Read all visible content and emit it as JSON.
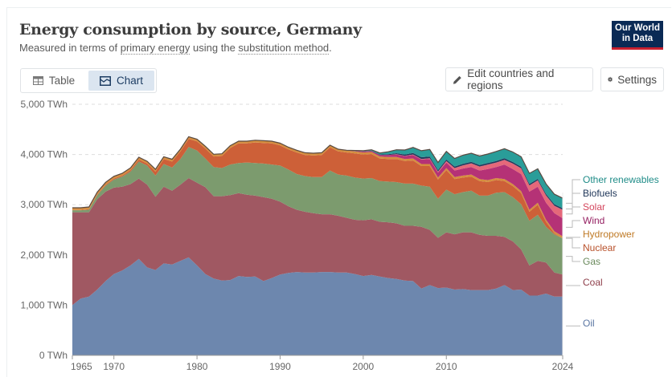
{
  "header": {
    "title": "Energy consumption by source, Germany",
    "subtitle_prefix": "Measured in terms of ",
    "subtitle_link1": "primary energy",
    "subtitle_mid": " using the ",
    "subtitle_link2": "substitution method",
    "subtitle_suffix": ".",
    "logo_line1": "Our World",
    "logo_line2": "in Data"
  },
  "controls": {
    "tab_table": "Table",
    "tab_chart": "Chart",
    "active_tab": "Chart",
    "edit_label": "Edit countries and regions",
    "settings_label": "Settings"
  },
  "colors": {
    "Oil": "#6d87ae",
    "Coal": "#a05862",
    "Gas": "#7c9b6e",
    "Nuclear": "#cd6038",
    "Hydropower": "#d58e3e",
    "Wind": "#b53276",
    "Solar": "#e5687a",
    "Biofuels": "#23395d",
    "Other renewables": "#2a9d99"
  },
  "label_colors": {
    "Oil": "#5b76a3",
    "Coal": "#8e3e4a",
    "Gas": "#6a8a5c",
    "Nuclear": "#b8502a",
    "Hydropower": "#bf7a26",
    "Wind": "#962263",
    "Solar": "#d4465d",
    "Biofuels": "#1d3457",
    "Other renewables": "#1f8c88"
  },
  "chart_data": {
    "type": "area",
    "stacked": true,
    "title": "Energy consumption by source, Germany",
    "subtitle": "Measured in terms of primary energy using the substitution method.",
    "xlabel": "",
    "ylabel": "",
    "ylim": [
      0,
      5000
    ],
    "yticks": [
      0,
      1000,
      2000,
      3000,
      4000,
      5000
    ],
    "ytick_labels": [
      "0 TWh",
      "1,000 TWh",
      "2,000 TWh",
      "3,000 TWh",
      "4,000 TWh",
      "5,000 TWh"
    ],
    "xlim": [
      1965,
      2024
    ],
    "xtick_labels": [
      "1965",
      "1970",
      "1980",
      "1990",
      "2000",
      "2010",
      "2024"
    ],
    "grid": "horizontal-dashed",
    "legend": "right-inline",
    "x": [
      1965,
      1966,
      1967,
      1968,
      1969,
      1970,
      1971,
      1972,
      1973,
      1974,
      1975,
      1976,
      1977,
      1978,
      1979,
      1980,
      1981,
      1982,
      1983,
      1984,
      1985,
      1986,
      1987,
      1988,
      1989,
      1990,
      1991,
      1992,
      1993,
      1994,
      1995,
      1996,
      1997,
      1998,
      1999,
      2000,
      2001,
      2002,
      2003,
      2004,
      2005,
      2006,
      2007,
      2008,
      2009,
      2010,
      2011,
      2012,
      2013,
      2014,
      2015,
      2016,
      2017,
      2018,
      2019,
      2020,
      2021,
      2022,
      2023,
      2024
    ],
    "series": [
      {
        "name": "Oil",
        "values": [
          1000,
          1130,
          1170,
          1310,
          1480,
          1620,
          1690,
          1790,
          1920,
          1750,
          1700,
          1830,
          1810,
          1880,
          1950,
          1790,
          1620,
          1530,
          1490,
          1500,
          1580,
          1560,
          1570,
          1480,
          1540,
          1610,
          1640,
          1660,
          1650,
          1650,
          1660,
          1660,
          1650,
          1650,
          1620,
          1580,
          1600,
          1570,
          1540,
          1520,
          1490,
          1480,
          1330,
          1400,
          1340,
          1350,
          1310,
          1320,
          1300,
          1300,
          1300,
          1330,
          1400,
          1300,
          1310,
          1190,
          1190,
          1230,
          1170,
          1170
        ]
      },
      {
        "name": "Coal",
        "values": [
          1850,
          1720,
          1680,
          1800,
          1780,
          1720,
          1670,
          1620,
          1600,
          1650,
          1460,
          1530,
          1470,
          1520,
          1580,
          1650,
          1730,
          1640,
          1680,
          1690,
          1650,
          1640,
          1610,
          1670,
          1580,
          1450,
          1330,
          1240,
          1210,
          1180,
          1150,
          1150,
          1130,
          1090,
          1080,
          1110,
          1110,
          1090,
          1110,
          1110,
          1090,
          1100,
          1230,
          1100,
          1000,
          1100,
          1100,
          1130,
          1150,
          1100,
          1080,
          1050,
          960,
          970,
          800,
          600,
          690,
          620,
          480,
          440
        ]
      },
      {
        "name": "Gas",
        "values": [
          40,
          40,
          50,
          80,
          120,
          160,
          200,
          250,
          340,
          380,
          420,
          450,
          460,
          510,
          620,
          640,
          570,
          580,
          560,
          610,
          600,
          640,
          650,
          670,
          680,
          720,
          730,
          710,
          710,
          720,
          740,
          870,
          820,
          840,
          840,
          830,
          820,
          810,
          810,
          820,
          840,
          840,
          820,
          860,
          780,
          850,
          800,
          800,
          830,
          780,
          800,
          860,
          890,
          880,
          900,
          890,
          920,
          710,
          760,
          720
        ]
      },
      {
        "name": "Nuclear",
        "values": [
          5,
          5,
          10,
          15,
          20,
          20,
          20,
          30,
          40,
          40,
          80,
          100,
          120,
          150,
          160,
          180,
          200,
          210,
          240,
          330,
          390,
          380,
          410,
          410,
          420,
          400,
          400,
          430,
          420,
          430,
          440,
          460,
          460,
          460,
          480,
          480,
          480,
          450,
          450,
          460,
          450,
          460,
          390,
          410,
          380,
          390,
          300,
          290,
          280,
          290,
          270,
          250,
          220,
          220,
          220,
          180,
          200,
          100,
          20,
          0
        ]
      },
      {
        "name": "Hydropower",
        "values": [
          40,
          40,
          40,
          40,
          40,
          40,
          40,
          40,
          40,
          40,
          40,
          40,
          40,
          40,
          40,
          40,
          40,
          40,
          40,
          40,
          40,
          40,
          40,
          40,
          40,
          40,
          40,
          40,
          40,
          40,
          40,
          40,
          40,
          40,
          40,
          40,
          40,
          40,
          40,
          40,
          40,
          40,
          40,
          40,
          40,
          40,
          40,
          40,
          40,
          40,
          40,
          40,
          40,
          40,
          40,
          40,
          40,
          40,
          40,
          40
        ]
      },
      {
        "name": "Wind",
        "values": [
          0,
          0,
          0,
          0,
          0,
          0,
          0,
          0,
          0,
          0,
          0,
          0,
          0,
          0,
          0,
          0,
          0,
          0,
          0,
          0,
          0,
          0,
          0,
          0,
          0,
          0,
          0,
          0,
          0,
          0,
          0,
          0,
          0,
          0,
          10,
          20,
          20,
          30,
          40,
          50,
          60,
          70,
          90,
          100,
          100,
          110,
          130,
          140,
          150,
          170,
          220,
          220,
          290,
          300,
          340,
          360,
          320,
          340,
          360,
          360
        ]
      },
      {
        "name": "Solar",
        "values": [
          0,
          0,
          0,
          0,
          0,
          0,
          0,
          0,
          0,
          0,
          0,
          0,
          0,
          0,
          0,
          0,
          0,
          0,
          0,
          0,
          0,
          0,
          0,
          0,
          0,
          0,
          0,
          0,
          0,
          0,
          0,
          0,
          0,
          0,
          0,
          0,
          0,
          0,
          0,
          5,
          5,
          10,
          10,
          15,
          20,
          30,
          50,
          65,
          75,
          80,
          90,
          90,
          95,
          110,
          115,
          125,
          125,
          145,
          150,
          170
        ]
      },
      {
        "name": "Biofuels",
        "values": [
          0,
          0,
          0,
          0,
          0,
          0,
          0,
          0,
          0,
          0,
          0,
          0,
          0,
          0,
          0,
          0,
          0,
          0,
          0,
          0,
          0,
          0,
          0,
          0,
          0,
          0,
          0,
          0,
          0,
          0,
          0,
          0,
          0,
          0,
          0,
          0,
          5,
          10,
          15,
          20,
          25,
          30,
          35,
          35,
          30,
          30,
          30,
          30,
          30,
          30,
          30,
          30,
          30,
          30,
          30,
          30,
          30,
          30,
          30,
          30
        ]
      },
      {
        "name": "Other renewables",
        "values": [
          5,
          5,
          5,
          5,
          5,
          5,
          5,
          5,
          5,
          5,
          5,
          5,
          5,
          5,
          5,
          5,
          5,
          5,
          5,
          5,
          5,
          5,
          5,
          5,
          5,
          5,
          5,
          5,
          5,
          5,
          5,
          5,
          5,
          5,
          10,
          15,
          20,
          30,
          50,
          70,
          90,
          110,
          130,
          140,
          150,
          160,
          160,
          170,
          170,
          180,
          180,
          190,
          190,
          200,
          200,
          210,
          200,
          200,
          200,
          200
        ]
      }
    ]
  }
}
